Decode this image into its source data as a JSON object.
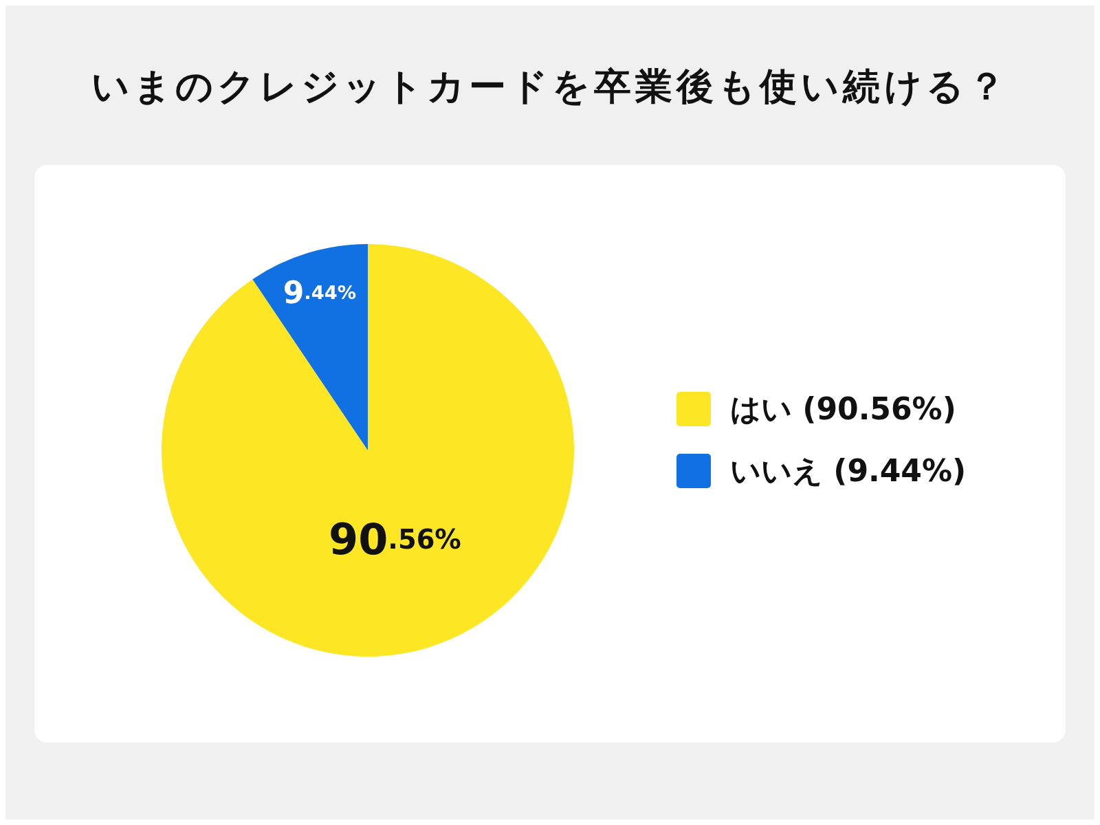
{
  "chart_data": {
    "type": "pie",
    "title": "いまのクレジットカードを卒業後も使い続ける？",
    "categories": [
      "はい (90.56%)",
      "いいえ (9.44%)"
    ],
    "values": [
      90.56,
      9.44
    ],
    "value_labels": [
      "90.56%",
      "9.44%"
    ],
    "colors": [
      "#fde724",
      "#1171e2"
    ],
    "legend": "right"
  }
}
